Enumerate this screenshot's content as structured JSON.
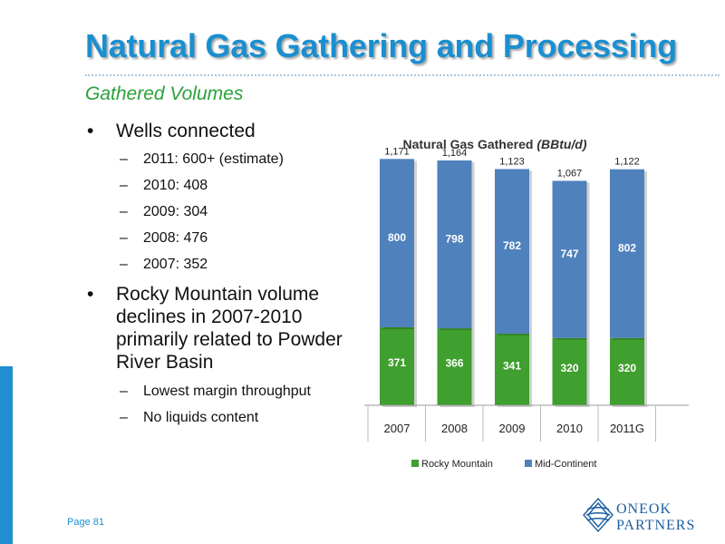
{
  "slide": {
    "title": "Natural Gas Gathering and Processing",
    "subtitle": "Gathered Volumes",
    "page": "Page 81",
    "logo_line1": "ONEOK",
    "logo_line2": "PARTNERS"
  },
  "bullets": {
    "b1": "Wells connected",
    "b1_items": [
      "2011: 600+ (estimate)",
      "2010: 408",
      "2009: 304",
      "2008: 476",
      "2007: 352"
    ],
    "b2": "Rocky Mountain volume declines in 2007-2010 primarily related to Powder River Basin",
    "b2_lines": [
      "Rocky Mountain volume",
      "declines in 2007-2010",
      "primarily related to Powder",
      "River Basin"
    ],
    "b2_items": [
      "Lowest margin throughput",
      "No liquids content"
    ]
  },
  "colors": {
    "title": "#1a8fd0",
    "subtitle": "#2aa13a",
    "rocky": "#3f9f2f",
    "mid": "#4f81bd"
  },
  "chart_data": {
    "type": "bar",
    "stacked": true,
    "title_main": "Natural Gas Gathered ",
    "title_unit": "(BBtu/d)",
    "categories": [
      "2007",
      "2008",
      "2009",
      "2010",
      "2011G"
    ],
    "series": [
      {
        "name": "Rocky Mountain",
        "values": [
          371,
          366,
          341,
          320,
          320
        ]
      },
      {
        "name": "Mid-Continent",
        "values": [
          800,
          798,
          782,
          747,
          802
        ]
      }
    ],
    "totals": [
      "1,171",
      "1,164",
      "1,123",
      "1,067",
      "1,122"
    ],
    "legend_position": "bottom",
    "grid": false
  }
}
